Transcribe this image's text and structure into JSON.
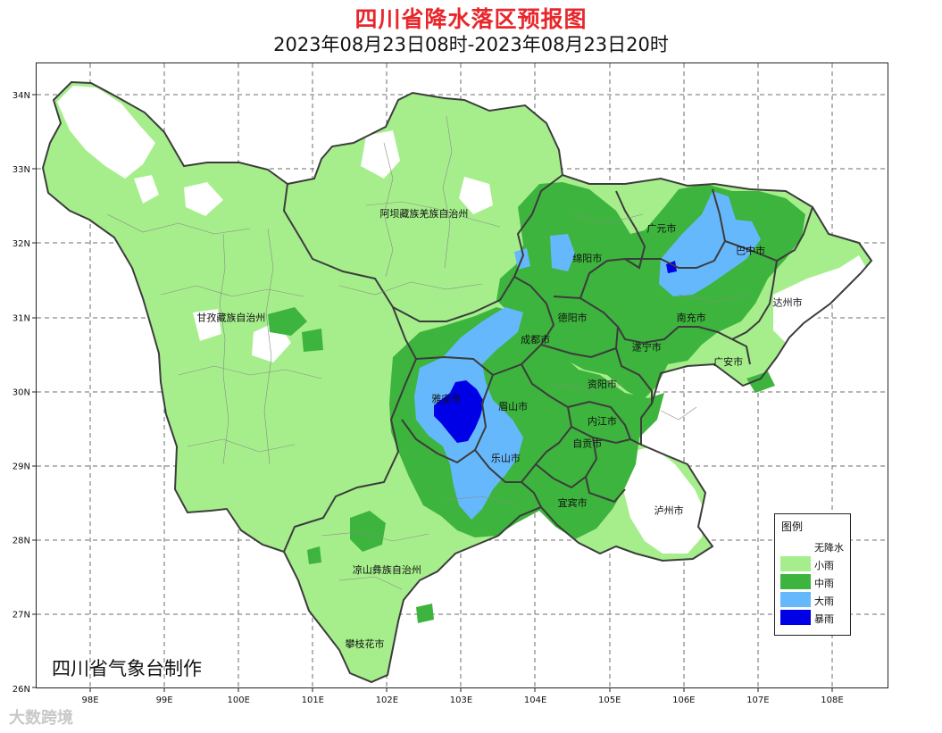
{
  "header": {
    "title": "四川省降水落区预报图",
    "subtitle": "2023年08月23日08时-2023年08月23日20时"
  },
  "axes": {
    "lat_labels": [
      "34N",
      "33N",
      "32N",
      "31N",
      "30N",
      "29N",
      "28N",
      "27N",
      "26N"
    ],
    "lon_labels": [
      "98E",
      "99E",
      "100E",
      "101E",
      "102E",
      "103E",
      "104E",
      "105E",
      "106E",
      "107E",
      "108E"
    ]
  },
  "places": [
    {
      "name": "阿坝藏族羌族自治州",
      "lon": 102.5,
      "lat": 32.4
    },
    {
      "name": "甘孜藏族自治州",
      "lon": 99.9,
      "lat": 31.0
    },
    {
      "name": "凉山彝族自治州",
      "lon": 102.0,
      "lat": 27.6
    },
    {
      "name": "攀枝花市",
      "lon": 101.7,
      "lat": 26.6
    },
    {
      "name": "雅安市",
      "lon": 102.8,
      "lat": 29.9
    },
    {
      "name": "眉山市",
      "lon": 103.7,
      "lat": 29.8
    },
    {
      "name": "乐山市",
      "lon": 103.6,
      "lat": 29.1
    },
    {
      "name": "成都市",
      "lon": 104.0,
      "lat": 30.7
    },
    {
      "name": "德阳市",
      "lon": 104.5,
      "lat": 31.0
    },
    {
      "name": "绵阳市",
      "lon": 104.7,
      "lat": 31.8
    },
    {
      "name": "广元市",
      "lon": 105.7,
      "lat": 32.2
    },
    {
      "name": "巴中市",
      "lon": 106.9,
      "lat": 31.9
    },
    {
      "name": "达州市",
      "lon": 107.4,
      "lat": 31.2
    },
    {
      "name": "南充市",
      "lon": 106.1,
      "lat": 31.0
    },
    {
      "name": "遂宁市",
      "lon": 105.5,
      "lat": 30.6
    },
    {
      "name": "广安市",
      "lon": 106.6,
      "lat": 30.4
    },
    {
      "name": "资阳市",
      "lon": 104.9,
      "lat": 30.1
    },
    {
      "name": "内江市",
      "lon": 104.9,
      "lat": 29.6
    },
    {
      "name": "自贡市",
      "lon": 104.7,
      "lat": 29.3
    },
    {
      "name": "宜宾市",
      "lon": 104.5,
      "lat": 28.5
    },
    {
      "name": "泸州市",
      "lon": 105.8,
      "lat": 28.4
    }
  ],
  "legend": {
    "title": "图例",
    "items": [
      {
        "label": "无降水",
        "color": "#ffffff"
      },
      {
        "label": "小雨",
        "color": "#a6ee8c"
      },
      {
        "label": "中雨",
        "color": "#3db43d"
      },
      {
        "label": "大雨",
        "color": "#66b8fc"
      },
      {
        "label": "暴雨",
        "color": "#0000e6"
      }
    ]
  },
  "footer": {
    "credit": "四川省气象台制作",
    "watermark": "大数跨境"
  }
}
